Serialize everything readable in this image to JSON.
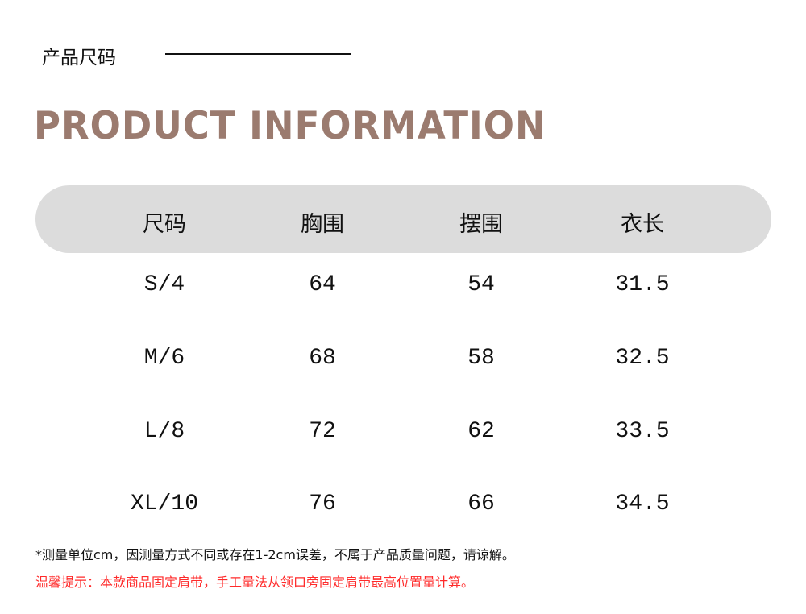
{
  "subtitle": "产品尺码",
  "title": "PRODUCT INFORMATION",
  "title_color": "#9b7b6f",
  "header_bg": "#dcdcdc",
  "table": {
    "headers": [
      "尺码",
      "胸围",
      "摆围",
      "衣长"
    ],
    "rows": [
      [
        "S/4",
        "64",
        "54",
        "31.5"
      ],
      [
        "M/6",
        "68",
        "58",
        "32.5"
      ],
      [
        "L/8",
        "72",
        "62",
        "33.5"
      ],
      [
        "XL/10",
        "76",
        "66",
        "34.5"
      ]
    ]
  },
  "note": "*测量单位cm，因测量方式不同或存在1-2cm误差，不属于产品质量问题，请谅解。",
  "tip": "温馨提示：本款商品固定肩带，手工量法从领口旁固定肩带最高位置量计算。",
  "tip_color": "#ff2a2a"
}
